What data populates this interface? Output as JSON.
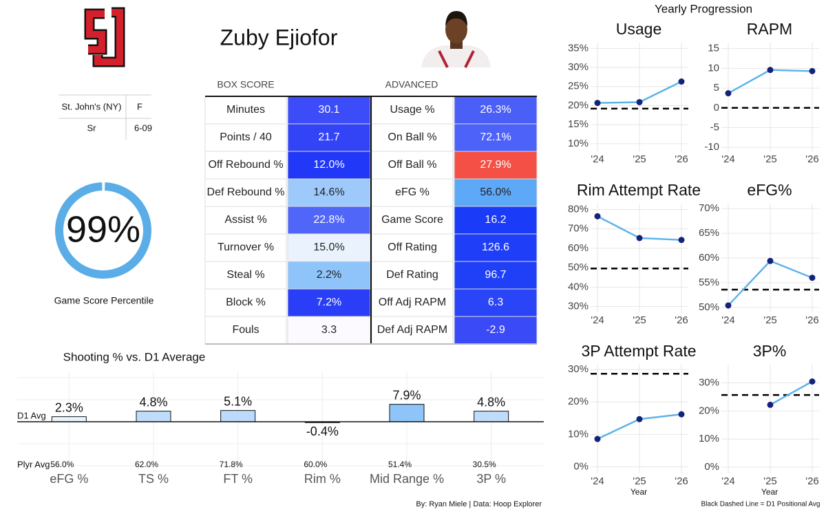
{
  "header": {
    "name": "Zuby Ejiofor",
    "credit": "By: Ryan Miele | Data: Hoop Explorer"
  },
  "info": {
    "rows": [
      [
        "St. John's (NY)",
        "F"
      ],
      [
        "Sr",
        "6-09"
      ]
    ]
  },
  "percentile": {
    "value": 99,
    "label": "99%",
    "caption": "Game Score Percentile",
    "color": "#5aade6"
  },
  "stats_table": {
    "headers": [
      "BOX SCORE",
      "ADVANCED"
    ],
    "box_score": [
      {
        "label": "Minutes",
        "value": "30.1",
        "color": "#3c4cf8"
      },
      {
        "label": "Points / 40",
        "value": "21.7",
        "color": "#3344f7"
      },
      {
        "label": "Off Rebound %",
        "value": "12.0%",
        "color": "#2238f8"
      },
      {
        "label": "Def Rebound %",
        "value": "14.6%",
        "color": "#9ecafb"
      },
      {
        "label": "Assist %",
        "value": "22.8%",
        "color": "#5066f8"
      },
      {
        "label": "Turnover %",
        "value": "15.0%",
        "color": "#eaf3fd"
      },
      {
        "label": "Steal %",
        "value": "2.2%",
        "color": "#8ec4fa"
      },
      {
        "label": "Block %",
        "value": "7.2%",
        "color": "#2a3ef7"
      },
      {
        "label": "Fouls",
        "value": "3.3",
        "color": "#fdfaff"
      }
    ],
    "advanced": [
      {
        "label": "Usage %",
        "value": "26.3%",
        "color": "#4a5ff7"
      },
      {
        "label": "On Ball %",
        "value": "72.1%",
        "color": "#4d62f8"
      },
      {
        "label": "Off Ball %",
        "value": "27.9%",
        "color": "#f55045"
      },
      {
        "label": "eFG %",
        "value": "56.0%",
        "color": "#5ea8f8"
      },
      {
        "label": "Game Score",
        "value": "16.2",
        "color": "#1a3bf7"
      },
      {
        "label": "Off Rating",
        "value": "126.6",
        "color": "#1e3ef7"
      },
      {
        "label": "Def Rating",
        "value": "96.7",
        "color": "#2040f7"
      },
      {
        "label": "Off Adj RAPM",
        "value": "6.3",
        "color": "#2a45f7"
      },
      {
        "label": "Def Adj RAPM",
        "value": "-2.9",
        "color": "#3a4af7"
      }
    ]
  },
  "progression": {
    "title": "Yearly Progression",
    "note": "Black Dashed Line = D1 Positional Avg"
  },
  "chart_data": [
    {
      "type": "bar",
      "title": "Shooting % vs. D1 Average",
      "categories": [
        "eFG %",
        "TS %",
        "FT %",
        "Rim %",
        "Mid Range %",
        "3P %"
      ],
      "values": [
        2.3,
        4.8,
        5.1,
        -0.4,
        7.9,
        4.8
      ],
      "value_labels": [
        "2.3%",
        "4.8%",
        "5.1%",
        "-0.4%",
        "7.9%",
        "4.8%"
      ],
      "colors": [
        "#eaf4fe",
        "#c0dcfb",
        "#bcdafb",
        "#1a1a1a",
        "#8ec4f8",
        "#c0dcfb"
      ],
      "ylim": [
        -24,
        24
      ],
      "baseline_label": "D1 Avg",
      "player_avg_label": "Plyr Avg",
      "player_avg": [
        "56.0%",
        "62.0%",
        "71.8%",
        "60.0%",
        "51.4%",
        "30.5%"
      ]
    },
    {
      "type": "line",
      "title": "Usage",
      "categories": [
        "'24",
        "'25",
        "'26"
      ],
      "values": [
        20.7,
        20.9,
        26.3
      ],
      "color": "#5cb3ea",
      "marker_color": "#14237a",
      "reference_line": 19.2,
      "ylim": [
        8,
        36.5
      ],
      "yticks": [
        {
          "value": 10,
          "label": "10%"
        },
        {
          "value": 15,
          "label": "15%"
        },
        {
          "value": 20,
          "label": "20%"
        },
        {
          "value": 25,
          "label": "25%"
        },
        {
          "value": 30,
          "label": "30%"
        },
        {
          "value": 35,
          "label": "35%"
        }
      ]
    },
    {
      "type": "line",
      "title": "RAPM",
      "categories": [
        "'24",
        "'25",
        "'26"
      ],
      "values": [
        3.7,
        9.6,
        9.3
      ],
      "color": "#5cb3ea",
      "marker_color": "#14237a",
      "reference_line": 0,
      "ylim": [
        -11,
        16.5
      ],
      "yticks": [
        -10,
        -5,
        0,
        5,
        10,
        15
      ]
    },
    {
      "type": "line",
      "title": "Rim Attempt Rate",
      "categories": [
        "'24",
        "'25",
        "'26"
      ],
      "values": [
        76.5,
        65.3,
        64.3
      ],
      "color": "#5cb3ea",
      "marker_color": "#14237a",
      "reference_line": 49.6,
      "ylim": [
        27,
        83
      ],
      "yticks": [
        {
          "value": 30,
          "label": "30%"
        },
        {
          "value": 40,
          "label": "40%"
        },
        {
          "value": 50,
          "label": "50%"
        },
        {
          "value": 60,
          "label": "60%"
        },
        {
          "value": 70,
          "label": "70%"
        },
        {
          "value": 80,
          "label": "80%"
        }
      ]
    },
    {
      "type": "line",
      "title": "eFG%",
      "categories": [
        "'24",
        "'25",
        "'26"
      ],
      "values": [
        50.4,
        59.4,
        56.0
      ],
      "color": "#5cb3ea",
      "marker_color": "#14237a",
      "reference_line": 53.6,
      "ylim": [
        49,
        71
      ],
      "yticks": [
        {
          "value": 50,
          "label": "50%"
        },
        {
          "value": 55,
          "label": "55%"
        },
        {
          "value": 60,
          "label": "60%"
        },
        {
          "value": 65,
          "label": "65%"
        },
        {
          "value": 70,
          "label": "70%"
        }
      ]
    },
    {
      "type": "line",
      "title": "3P Attempt Rate",
      "categories": [
        "'24",
        "'25",
        "'26"
      ],
      "values": [
        8.6,
        14.7,
        16.2
      ],
      "color": "#5cb3ea",
      "marker_color": "#14237a",
      "reference_line": 28.7,
      "ylim": [
        -2,
        31.5
      ],
      "xlabel": "Year",
      "yticks": [
        {
          "value": 0,
          "label": "0%"
        },
        {
          "value": 10,
          "label": "10%"
        },
        {
          "value": 20,
          "label": "20%"
        },
        {
          "value": 30,
          "label": "30%"
        }
      ]
    },
    {
      "type": "line",
      "title": "3P%",
      "categories": [
        "'24",
        "'25",
        "'26"
      ],
      "values": [
        null,
        22.2,
        30.5
      ],
      "color": "#5cb3ea",
      "marker_color": "#14237a",
      "reference_line": 25.7,
      "ylim": [
        -2.2,
        36.5
      ],
      "xlabel": "Year",
      "yticks": [
        {
          "value": 0,
          "label": "0%"
        },
        {
          "value": 10,
          "label": "10%"
        },
        {
          "value": 20,
          "label": "20%"
        },
        {
          "value": 30,
          "label": "30%"
        }
      ]
    }
  ]
}
